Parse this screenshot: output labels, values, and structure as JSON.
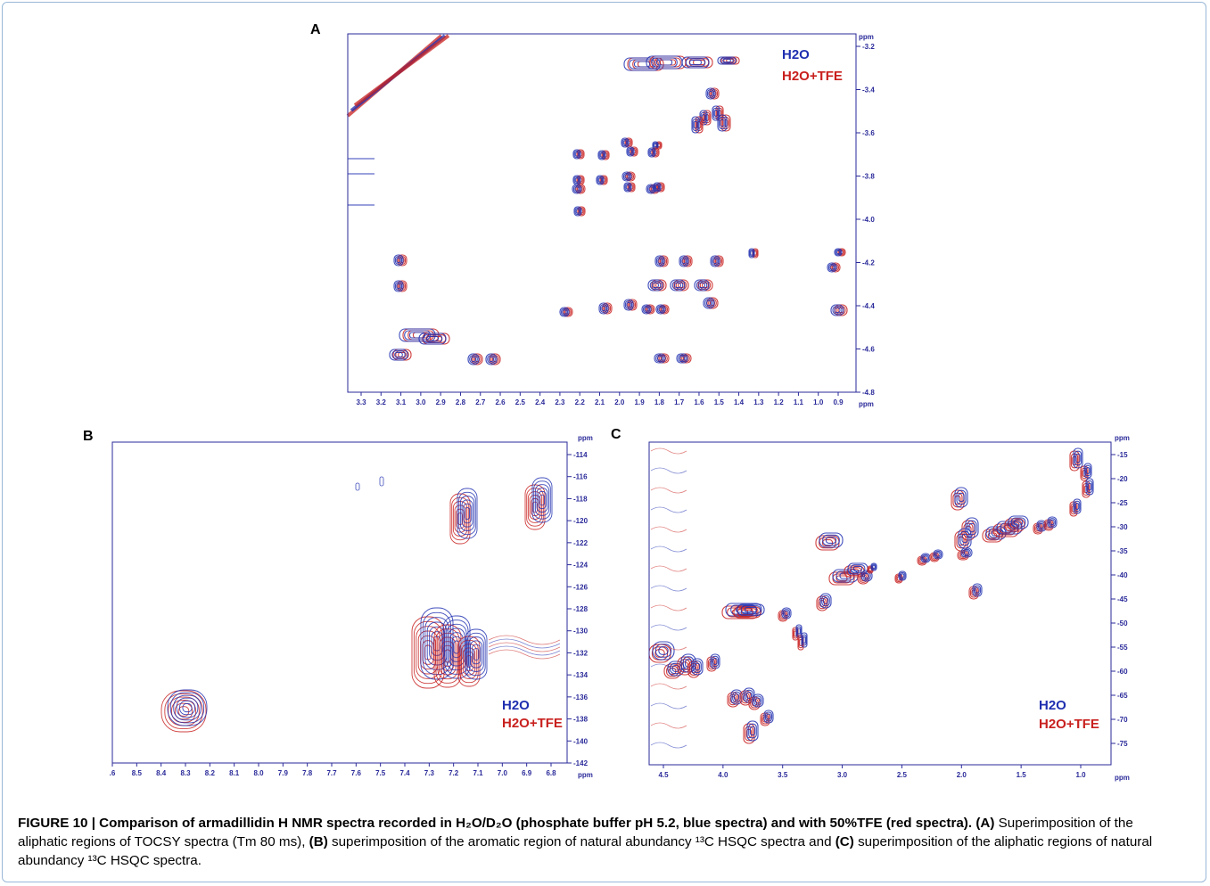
{
  "panels": {
    "A": {
      "label": "A",
      "x_unit": "ppm",
      "y_unit": "ppm",
      "x_ticks": [
        "3.3",
        "3.2",
        "3.1",
        "3.0",
        "2.9",
        "2.8",
        "2.7",
        "2.6",
        "2.5",
        "2.4",
        "2.3",
        "2.2",
        "2.1",
        "2.0",
        "1.9",
        "1.8",
        "1.7",
        "1.6",
        "1.5",
        "1.4",
        "1.3",
        "1.2",
        "1.1",
        "1.0",
        "0.9"
      ],
      "y_ticks": [
        "3.2",
        "3.4",
        "3.6",
        "3.8",
        "4.0",
        "4.2",
        "4.4",
        "4.6",
        "4.8"
      ],
      "legend": [
        "H2O",
        "H2O+TFE"
      ]
    },
    "B": {
      "label": "B",
      "x_unit": "ppm",
      "y_unit": "ppm",
      "x_ticks": [
        ".6",
        "8.5",
        "8.4",
        "8.3",
        "8.2",
        "8.1",
        "8.0",
        "7.9",
        "7.8",
        "7.7",
        "7.6",
        "7.5",
        "7.4",
        "7.3",
        "7.2",
        "7.1",
        "7.0",
        "6.9",
        "6.8"
      ],
      "y_ticks": [
        "114",
        "116",
        "118",
        "120",
        "122",
        "124",
        "126",
        "128",
        "130",
        "132",
        "134",
        "136",
        "138",
        "140",
        "142"
      ],
      "legend": [
        "H2O",
        "H2O+TFE"
      ]
    },
    "C": {
      "label": "C",
      "x_unit": "ppm",
      "y_unit": "ppm",
      "x_ticks": [
        "4.5",
        "4.0",
        "3.5",
        "3.0",
        "2.5",
        "2.0",
        "1.5",
        "1.0"
      ],
      "y_ticks": [
        "15",
        "20",
        "25",
        "30",
        "35",
        "40",
        "45",
        "50",
        "55",
        "60",
        "65",
        "70",
        "75"
      ],
      "legend": [
        "H2O",
        "H2O+TFE"
      ]
    }
  },
  "colors": {
    "h2o": "#1f2fb0",
    "tfe": "#c8201e",
    "axis": "#2a2a9a"
  },
  "caption": {
    "figno": "FIGURE 10 | Comparison of armadillidin H NMR spectra recorded in H₂O/D₂O (phosphate buffer pH 5.2, blue spectra) and with 50%TFE (red spectra).",
    "a_label": "(A)",
    "a_text": " Superimposition of the aliphatic regions of TOCSY spectra (Tm 80 ms), ",
    "b_label": "(B)",
    "b_text": " superimposition of the aromatic region of natural abundancy ¹³C HSQC spectra and ",
    "c_label": "(C)",
    "c_text": " superimposition of the aliphatic regions of natural abundancy ¹³C HSQC spectra."
  }
}
